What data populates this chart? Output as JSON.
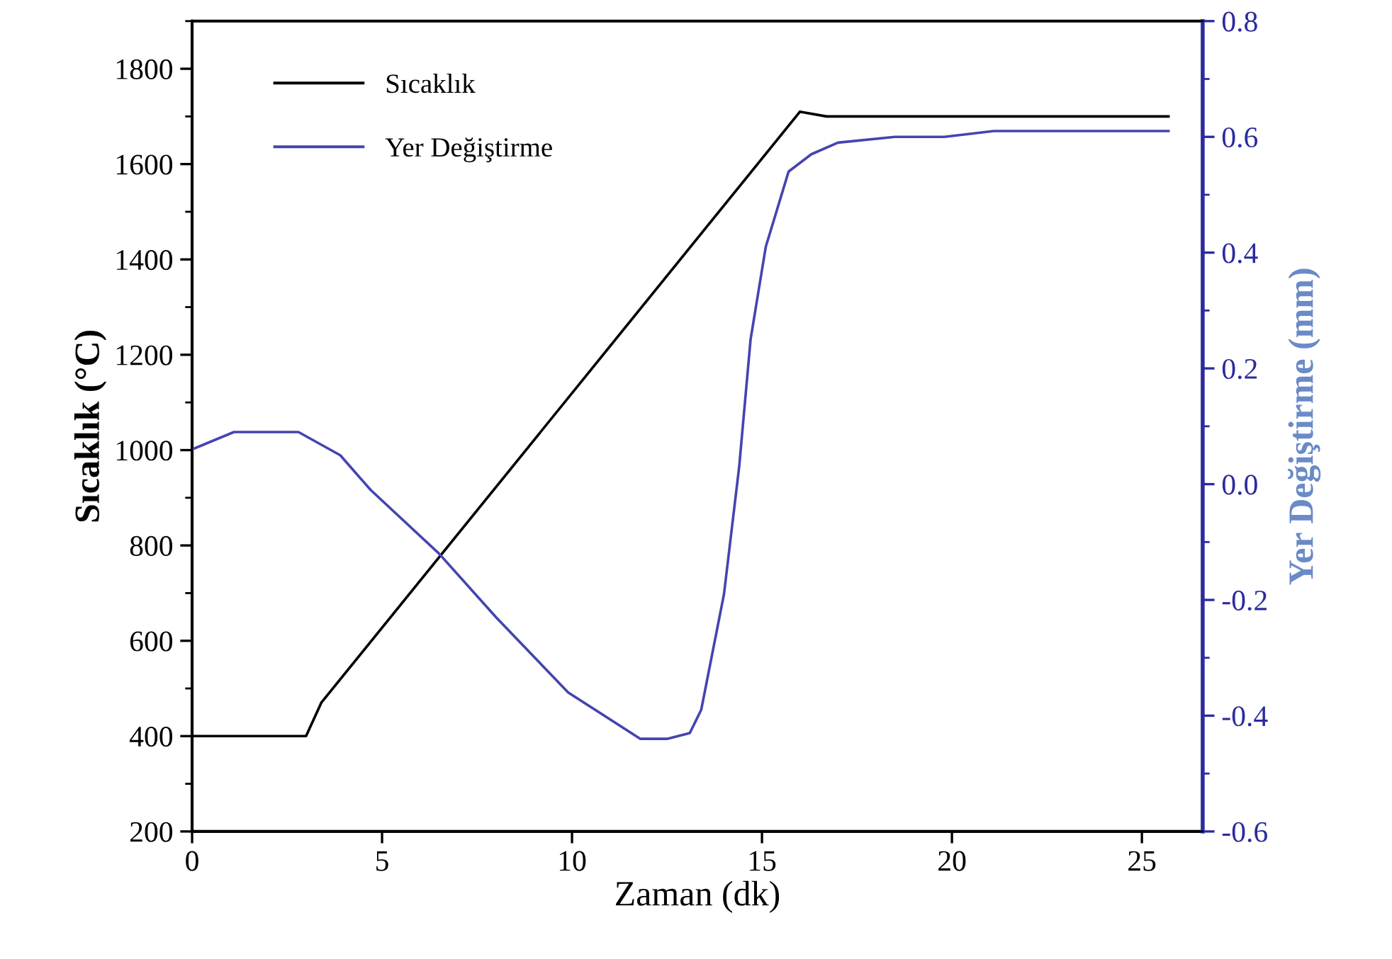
{
  "chart_data": {
    "type": "line",
    "xlabel": "Zaman (dk)",
    "ylabel": "Sıcaklık (°C)",
    "y2label": "Yer Değiştirme (mm)",
    "xlim": [
      0,
      26.6
    ],
    "xticks": [
      0,
      5,
      10,
      15,
      20,
      25
    ],
    "ylim": [
      200,
      1900
    ],
    "yticks": [
      200,
      400,
      600,
      800,
      1000,
      1200,
      1400,
      1600,
      1800
    ],
    "y2lim": [
      -0.6,
      0.8
    ],
    "y2ticks": [
      {
        "value": -0.6,
        "label": "-0.6"
      },
      {
        "value": -0.4,
        "label": "-0.4"
      },
      {
        "value": -0.2,
        "label": "-0.2"
      },
      {
        "value": 0.0,
        "label": "0.0"
      },
      {
        "value": 0.2,
        "label": "0.2"
      },
      {
        "value": 0.4,
        "label": "0.4"
      },
      {
        "value": 0.6,
        "label": "0.6"
      },
      {
        "value": 0.8,
        "label": "0.8"
      }
    ],
    "grid": false,
    "legend": "top left",
    "marker": "none",
    "line_style": "solid",
    "series": [
      {
        "name": "Sıcaklık",
        "color": "#000000",
        "x": [
          0,
          3.0,
          3.4,
          16.0,
          16.7,
          25.7
        ],
        "values": [
          400,
          400,
          470,
          1710,
          1700,
          1700
        ]
      },
      {
        "name": "Yer Değiştirme",
        "color": "#4444b0",
        "axis": "y2",
        "x": [
          0,
          1.1,
          2.8,
          3.9,
          4.7,
          6.5,
          8.0,
          9.9,
          11.8,
          12.5,
          13.1,
          13.4,
          14.0,
          14.4,
          14.7,
          15.1,
          15.7,
          16.3,
          17.0,
          18.5,
          19.8,
          21.1,
          22.2,
          25.7
        ],
        "values": [
          0.06,
          0.09,
          0.09,
          0.05,
          -0.01,
          -0.12,
          -0.23,
          -0.36,
          -0.44,
          -0.44,
          -0.43,
          -0.39,
          -0.19,
          0.03,
          0.25,
          0.41,
          0.54,
          0.57,
          0.59,
          0.6,
          0.6,
          0.61,
          0.61,
          0.61
        ]
      }
    ]
  }
}
